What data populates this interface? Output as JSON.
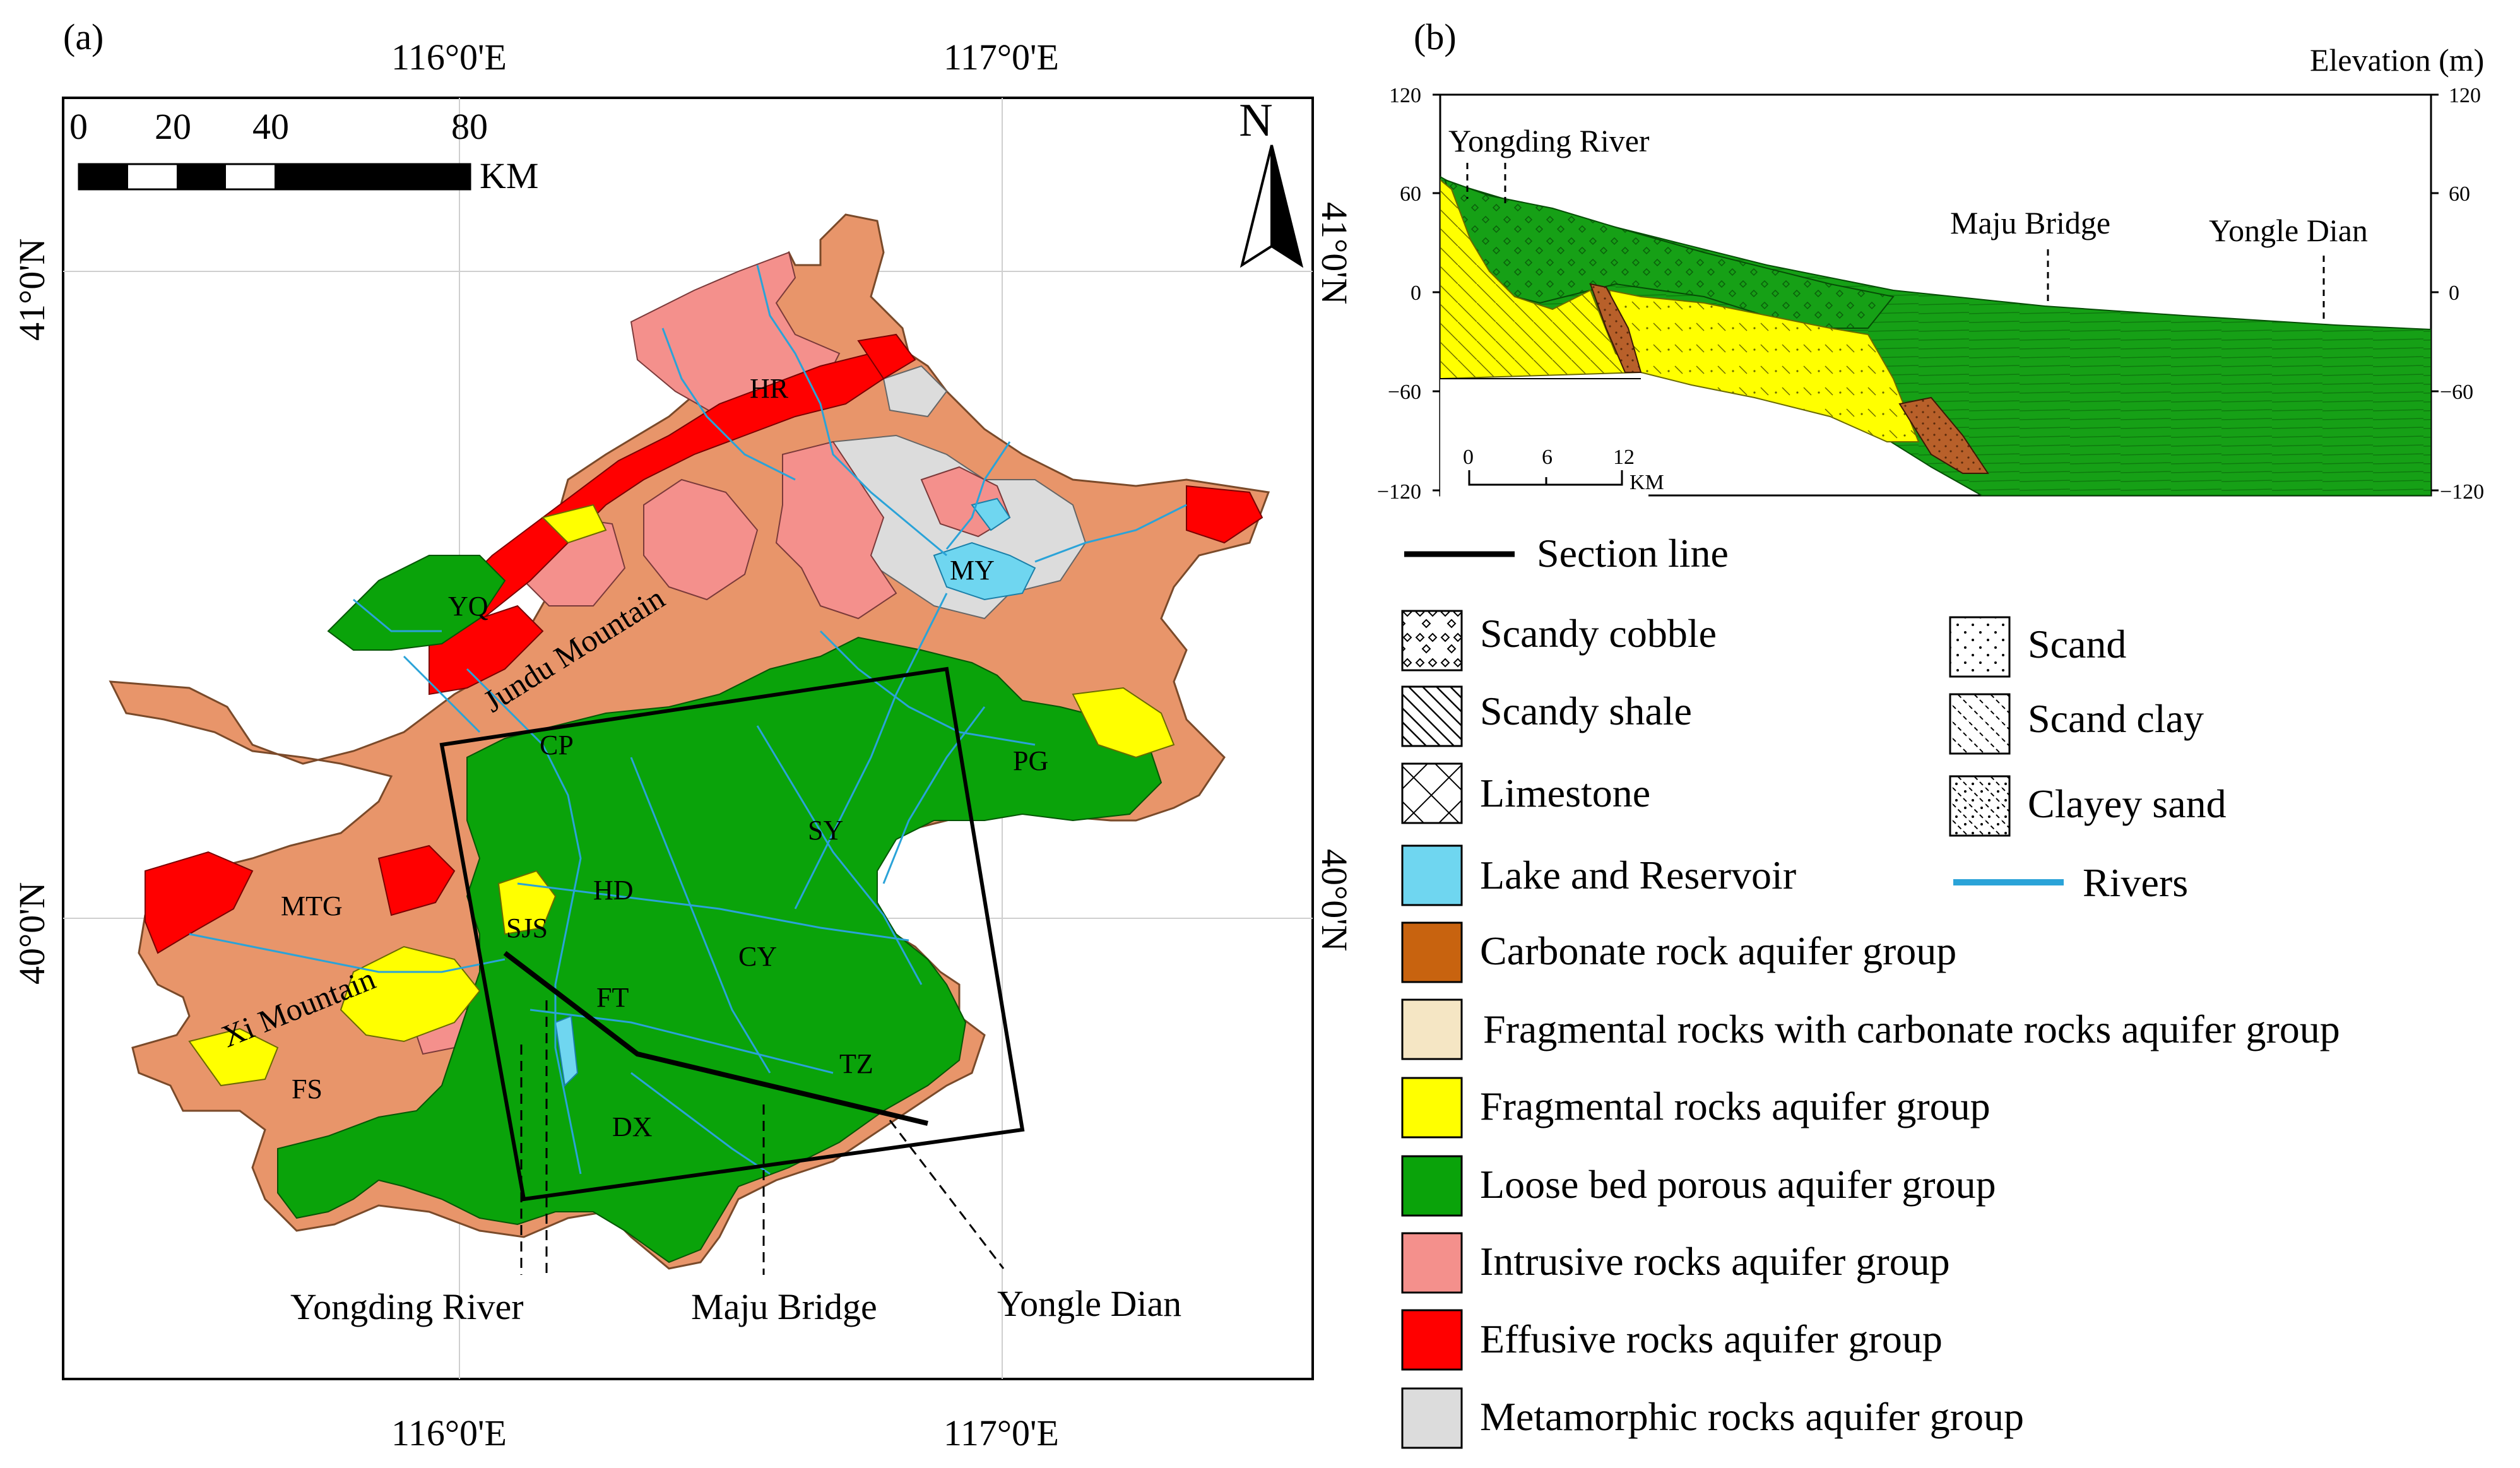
{
  "panel_a": {
    "label": "(a)",
    "lon_labels": [
      "116°0'E",
      "117°0'E"
    ],
    "lat_labels": [
      "41°0'N",
      "40°0'N"
    ],
    "scale_ticks": [
      "0",
      "20",
      "40",
      "80"
    ],
    "scale_unit": "KM",
    "north": "N",
    "district_codes": [
      "HR",
      "MY",
      "YQ",
      "CP",
      "PG",
      "SY",
      "HD",
      "MTG",
      "SJS",
      "CY",
      "FT",
      "TZ",
      "FS",
      "DX"
    ],
    "place_labels": {
      "jundu": "Jundu Mountain",
      "xi": "Xi Mountain"
    },
    "section_labels": {
      "yongding": "Yongding River",
      "maju": "Maju Bridge",
      "yongle": "Yongle Dian"
    }
  },
  "panel_b": {
    "label": "(b)",
    "elevation_title": "Elevation (m)",
    "left_ticks": [
      "120",
      "60",
      "0",
      "−60",
      "−120"
    ],
    "right_ticks": [
      "120",
      "60",
      "0",
      "−60",
      "−120"
    ],
    "scale_ticks": [
      "0",
      "6",
      "12"
    ],
    "scale_unit": "KM",
    "place_labels": {
      "yongding": "Yongding River",
      "maju": "Maju Bridge",
      "yongle": "Yongle Dian"
    }
  },
  "legend": {
    "section_line": "Section line",
    "hatch": [
      {
        "label": "Scandy cobble",
        "pattern": "cobble"
      },
      {
        "label": "Scandy shale",
        "pattern": "shale"
      },
      {
        "label": "Limestone",
        "pattern": "lime"
      },
      {
        "label": "Scand",
        "pattern": "sand"
      },
      {
        "label": "Scand clay",
        "pattern": "sandclay"
      },
      {
        "label": "Clayey sand",
        "pattern": "clayeysand"
      }
    ],
    "lake": {
      "label": "Lake and Reservoir",
      "color": "#6fd6f0"
    },
    "rivers": {
      "label": "Rivers",
      "color": "#2aa3d8"
    },
    "units": [
      {
        "label": "Carbonate rock aquifer group",
        "color": "#c8630f"
      },
      {
        "label": "Fragmental rocks with carbonate rocks aquifer group",
        "color": "#f5e6c4"
      },
      {
        "label": "Fragmental rocks aquifer group",
        "color": "#ffff00"
      },
      {
        "label": "Loose bed porous aquifer group",
        "color": "#0aa30a"
      },
      {
        "label": "Intrusive rocks aquifer group",
        "color": "#f4908c"
      },
      {
        "label": "Effusive rocks aquifer group",
        "color": "#ff0000"
      },
      {
        "label": "Metamorphic rocks aquifer group",
        "color": "#dcdcdc"
      }
    ]
  },
  "colors": {
    "fragmental_carbonate_map": "#e8956a",
    "section_green": "#16a016",
    "brown_block": "#b8602a"
  }
}
